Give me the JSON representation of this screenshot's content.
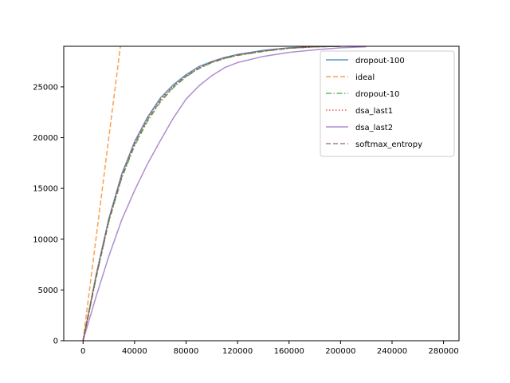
{
  "chart_data": {
    "type": "line",
    "title": "",
    "xlabel": "",
    "ylabel": "",
    "xlim": [
      -15000,
      292000
    ],
    "ylim": [
      0,
      29000
    ],
    "xticks": [
      0,
      40000,
      80000,
      120000,
      160000,
      200000,
      240000,
      280000
    ],
    "yticks": [
      0,
      5000,
      10000,
      15000,
      20000,
      25000
    ],
    "grid": false,
    "legend_position": "top-right",
    "series": [
      {
        "name": "dropout-100",
        "color": "#1f77b4",
        "style": "solid",
        "x": [
          0,
          5000,
          10000,
          20000,
          30000,
          40000,
          50000,
          60000,
          70000,
          80000,
          90000,
          100000,
          110000,
          120000,
          140000,
          160000,
          180000,
          200000
        ],
        "y": [
          0,
          3200,
          6400,
          12000,
          16400,
          19600,
          22000,
          23900,
          25200,
          26200,
          27000,
          27500,
          27900,
          28200,
          28600,
          28850,
          28950,
          29000
        ]
      },
      {
        "name": "ideal",
        "color": "#ff7f0e",
        "style": "dashed",
        "x": [
          0,
          29000
        ],
        "y": [
          0,
          29000
        ]
      },
      {
        "name": "dropout-10",
        "color": "#2ca02c",
        "style": "dashdot",
        "x": [
          0,
          5000,
          10000,
          20000,
          30000,
          40000,
          50000,
          60000,
          70000,
          80000,
          90000,
          100000,
          110000,
          120000,
          140000,
          160000,
          180000,
          200000
        ],
        "y": [
          0,
          3000,
          6100,
          11700,
          16000,
          19200,
          21600,
          23500,
          24900,
          26000,
          26800,
          27400,
          27800,
          28100,
          28500,
          28800,
          28950,
          29000
        ]
      },
      {
        "name": "dsa_last1",
        "color": "#d62728",
        "style": "dotted",
        "x": [
          0,
          5000,
          10000,
          20000,
          30000,
          40000,
          50000,
          60000,
          70000,
          80000,
          90000,
          100000,
          110000,
          120000,
          140000,
          160000,
          180000,
          200000
        ],
        "y": [
          0,
          3100,
          6300,
          11900,
          16300,
          19500,
          21900,
          23800,
          25100,
          26100,
          26900,
          27450,
          27850,
          28150,
          28550,
          28820,
          28950,
          29000
        ]
      },
      {
        "name": "dsa_last2",
        "color": "#9467bd",
        "style": "solid",
        "x": [
          0,
          10000,
          20000,
          30000,
          40000,
          50000,
          60000,
          70000,
          80000,
          90000,
          100000,
          110000,
          120000,
          140000,
          160000,
          180000,
          200000,
          220000
        ],
        "y": [
          0,
          4300,
          8300,
          11900,
          14800,
          17400,
          19700,
          21900,
          23800,
          25100,
          26100,
          26900,
          27400,
          28000,
          28400,
          28650,
          28850,
          28950
        ]
      },
      {
        "name": "softmax_entropy",
        "color": "#8c564b",
        "style": "dashed",
        "x": [
          0,
          5000,
          10000,
          20000,
          30000,
          40000,
          50000,
          60000,
          70000,
          80000,
          90000,
          100000,
          110000,
          120000,
          140000,
          160000,
          180000,
          200000
        ],
        "y": [
          0,
          3050,
          6200,
          11800,
          16100,
          19350,
          21750,
          23650,
          25000,
          26050,
          26850,
          27420,
          27820,
          28120,
          28520,
          28810,
          28950,
          29000
        ]
      }
    ]
  }
}
